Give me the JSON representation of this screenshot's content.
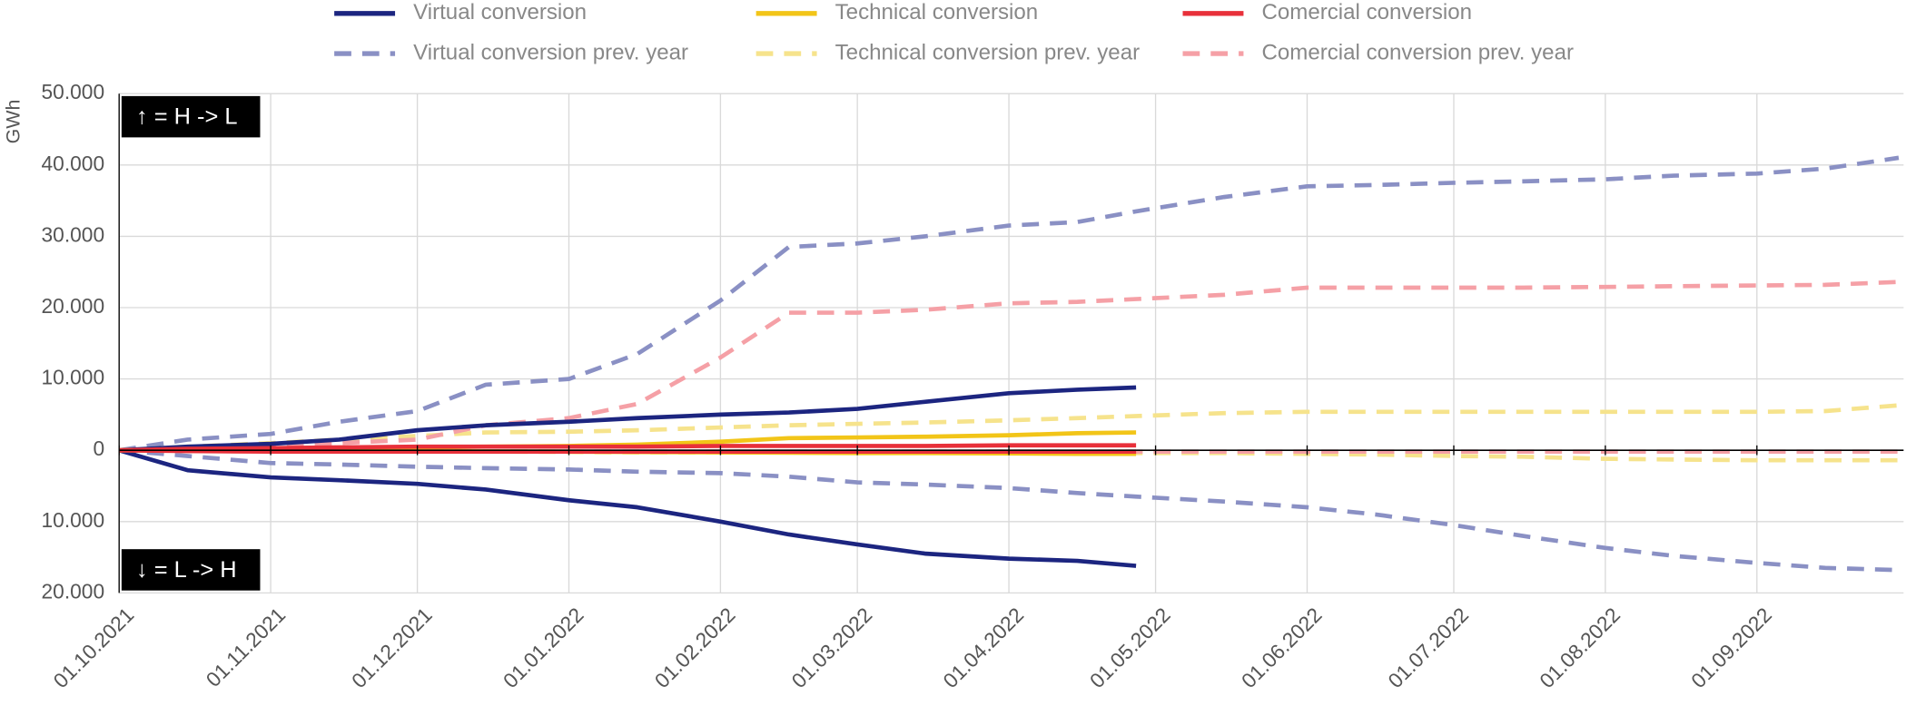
{
  "chart_data": {
    "type": "line",
    "y_label": "GWh",
    "annotations": [
      "↑ = H -> L",
      "↓ = L -> H"
    ],
    "x": [
      "01.10.2021",
      "15.10.2021",
      "01.11.2021",
      "15.11.2021",
      "01.12.2021",
      "15.12.2021",
      "01.01.2022",
      "15.01.2022",
      "01.02.2022",
      "15.02.2022",
      "01.03.2022",
      "15.03.2022",
      "01.04.2022",
      "15.04.2022",
      "27.04.2022",
      "15.05.2022",
      "01.06.2022",
      "15.06.2022",
      "01.07.2022",
      "15.07.2022",
      "01.08.2022",
      "15.08.2022",
      "01.09.2022",
      "15.09.2022",
      "30.09.2022"
    ],
    "xlim": [
      "01.10.2021",
      "01.10.2022"
    ],
    "xticks": [
      "01.10.2021",
      "01.11.2021",
      "01.12.2021",
      "01.01.2022",
      "01.02.2022",
      "01.03.2022",
      "01.04.2022",
      "01.05.2022",
      "01.06.2022",
      "01.07.2022",
      "01.08.2022",
      "01.09.2022"
    ],
    "ylim": [
      -20000,
      50000
    ],
    "yticks": [
      {
        "value": -20000,
        "label": "20.000"
      },
      {
        "value": -10000,
        "label": "10.000"
      },
      0,
      {
        "value": 10000,
        "label": "10.000"
      },
      {
        "value": 20000,
        "label": "20.000"
      },
      {
        "value": 30000,
        "label": "30.000"
      },
      {
        "value": 40000,
        "label": "40.000"
      },
      {
        "value": 50000,
        "label": "50.000"
      }
    ],
    "grid": true,
    "series": [
      {
        "name": "Virtual conversion prev. year",
        "color": "#8a90c4",
        "dashed": true,
        "values_hl": [
          0,
          1500,
          2300,
          4000,
          5500,
          9200,
          10000,
          13500,
          21000,
          28500,
          29000,
          30000,
          31500,
          32000,
          33500,
          35500,
          37000,
          37200,
          37500,
          37700,
          38000,
          38500,
          38800,
          39500,
          41000
        ],
        "values_lh": [
          0,
          -800,
          -1800,
          -2000,
          -2300,
          -2500,
          -2700,
          -3000,
          -3200,
          -3700,
          -4500,
          -4800,
          -5300,
          -6000,
          -6500,
          -7200,
          -8000,
          -9000,
          -10500,
          -12000,
          -13700,
          -14800,
          -15800,
          -16500,
          -16800
        ]
      },
      {
        "name": "Technical conversion prev. year",
        "color": "#f6e38c",
        "dashed": true,
        "values_hl": [
          0,
          500,
          1000,
          1500,
          2000,
          2500,
          2600,
          2800,
          3200,
          3500,
          3700,
          3900,
          4200,
          4500,
          4800,
          5200,
          5400,
          5400,
          5400,
          5400,
          5400,
          5400,
          5400,
          5500,
          6300
        ],
        "values_lh": [
          0,
          -100,
          -150,
          -200,
          -200,
          -200,
          -250,
          -300,
          -300,
          -300,
          -350,
          -350,
          -400,
          -400,
          -400,
          -400,
          -500,
          -600,
          -800,
          -900,
          -1200,
          -1300,
          -1400,
          -1400,
          -1400
        ]
      },
      {
        "name": "Comercial conversion prev. year",
        "color": "#f5a0a6",
        "dashed": true,
        "values_hl": [
          0,
          200,
          500,
          1000,
          1500,
          3500,
          4500,
          6500,
          13000,
          19300,
          19300,
          19700,
          20600,
          20800,
          21200,
          21800,
          22800,
          22800,
          22800,
          22800,
          22900,
          23000,
          23100,
          23200,
          23600
        ],
        "values_lh": [
          0,
          -100,
          -100,
          -100,
          -150,
          -150,
          -200,
          -200,
          -200,
          -200,
          -200,
          -200,
          -200,
          -200,
          -200,
          -200,
          -200,
          -200,
          -200,
          -200,
          -200,
          -200,
          -200,
          -200,
          -200
        ]
      },
      {
        "name": "Virtual conversion",
        "color": "#1c2580",
        "dashed": false,
        "values_hl": [
          0,
          500,
          900,
          1500,
          2800,
          3500,
          4000,
          4500,
          5000,
          5300,
          5800,
          6800,
          8000,
          8500,
          8800,
          null,
          null,
          null,
          null,
          null,
          null,
          null,
          null,
          null,
          null
        ],
        "values_lh": [
          0,
          -2800,
          -3800,
          -4200,
          -4700,
          -5500,
          -7000,
          -8000,
          -10000,
          -11800,
          -13200,
          -14500,
          -15200,
          -15500,
          -16200,
          null,
          null,
          null,
          null,
          null,
          null,
          null,
          null,
          null,
          null
        ]
      },
      {
        "name": "Technical conversion",
        "color": "#f2c518",
        "dashed": false,
        "values_hl": [
          0,
          100,
          200,
          300,
          400,
          500,
          600,
          800,
          1200,
          1700,
          1800,
          1900,
          2100,
          2400,
          2500,
          null,
          null,
          null,
          null,
          null,
          null,
          null,
          null,
          null,
          null
        ],
        "values_lh": [
          0,
          -50,
          -100,
          -100,
          -150,
          -150,
          -200,
          -250,
          -300,
          -350,
          -400,
          -400,
          -450,
          -500,
          -500,
          null,
          null,
          null,
          null,
          null,
          null,
          null,
          null,
          null,
          null
        ]
      },
      {
        "name": "Comercial conversion",
        "color": "#e8303a",
        "dashed": false,
        "values_hl": [
          0,
          200,
          300,
          400,
          500,
          500,
          500,
          500,
          600,
          600,
          600,
          600,
          700,
          700,
          700,
          null,
          null,
          null,
          null,
          null,
          null,
          null,
          null,
          null,
          null
        ],
        "values_lh": [
          0,
          -100,
          -200,
          -200,
          -200,
          -200,
          -200,
          -200,
          -200,
          -200,
          -200,
          -200,
          -200,
          -200,
          -200,
          null,
          null,
          null,
          null,
          null,
          null,
          null,
          null,
          null,
          null
        ]
      }
    ]
  }
}
